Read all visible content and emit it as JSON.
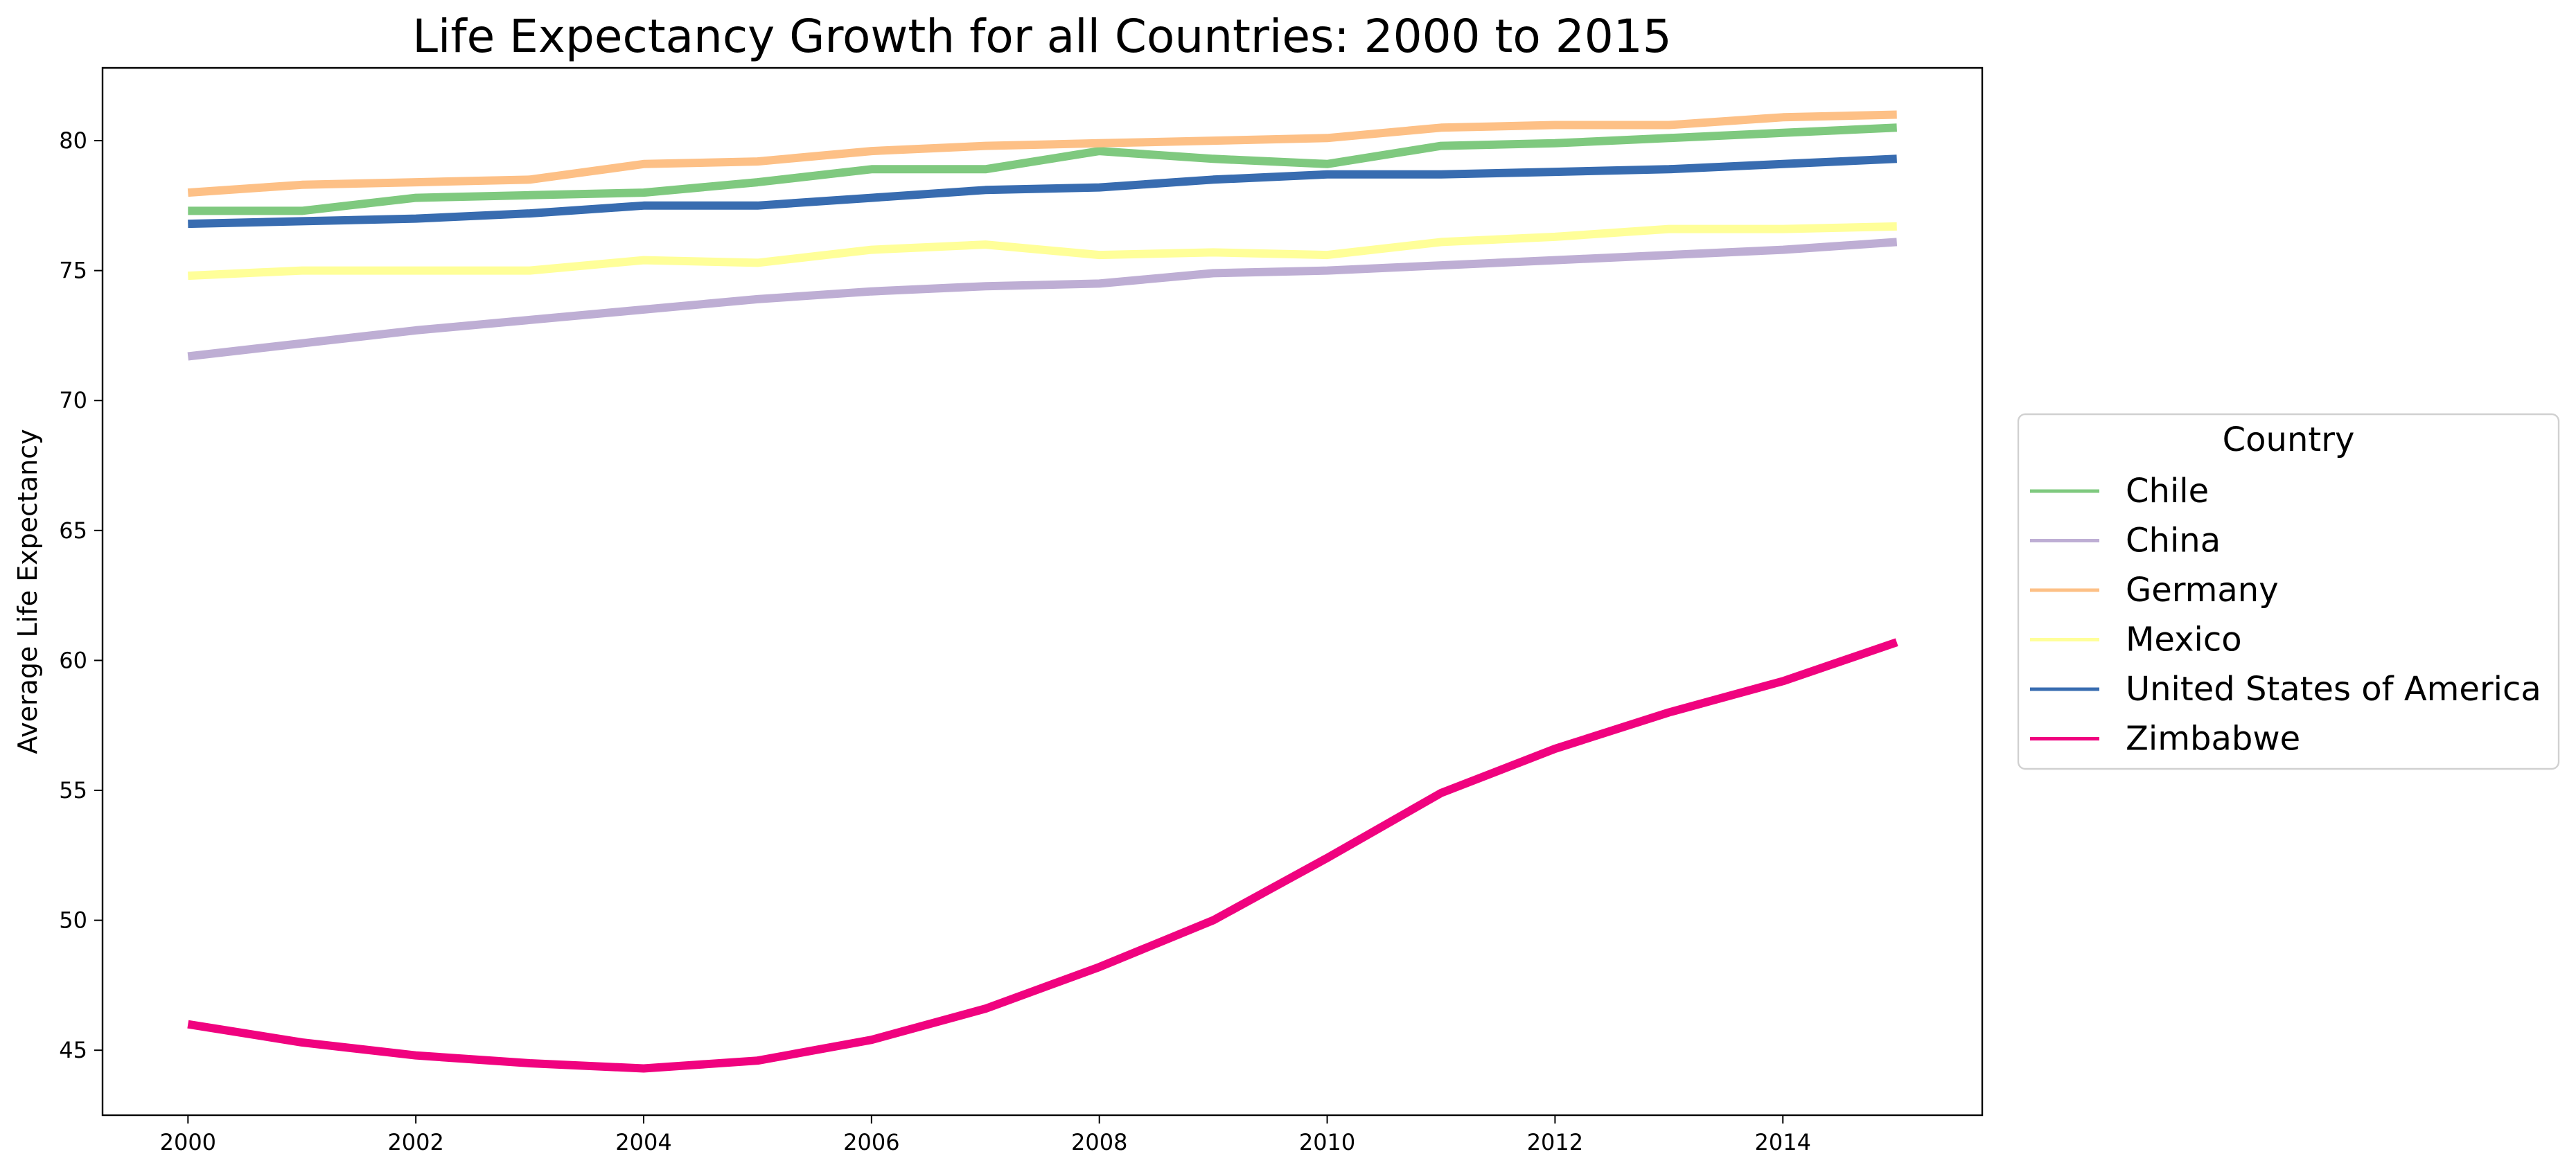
{
  "chart_data": {
    "type": "line",
    "title": "Life Expectancy Growth for all Countries: 2000 to 2015",
    "xlabel": "",
    "ylabel": "Average Life Expectancy",
    "xlim": [
      1999.25,
      2015.75
    ],
    "ylim": [
      42.5,
      82.8
    ],
    "xticks": [
      2000,
      2002,
      2004,
      2006,
      2008,
      2010,
      2012,
      2014
    ],
    "yticks": [
      45,
      50,
      55,
      60,
      65,
      70,
      75,
      80
    ],
    "grid": false,
    "legend": {
      "title": "Country",
      "placement": "outside-right"
    },
    "x": [
      2000,
      2001,
      2002,
      2003,
      2004,
      2005,
      2006,
      2007,
      2008,
      2009,
      2010,
      2011,
      2012,
      2013,
      2014,
      2015
    ],
    "series": [
      {
        "name": "Chile",
        "color": "#7fc97f",
        "values": [
          77.3,
          77.3,
          77.8,
          77.9,
          78.0,
          78.4,
          78.9,
          78.9,
          79.6,
          79.3,
          79.1,
          79.8,
          79.9,
          80.1,
          80.3,
          80.5
        ]
      },
      {
        "name": "China",
        "color": "#beaed4",
        "values": [
          71.7,
          72.2,
          72.7,
          73.1,
          73.5,
          73.9,
          74.2,
          74.4,
          74.5,
          74.9,
          75.0,
          75.2,
          75.4,
          75.6,
          75.8,
          76.1
        ]
      },
      {
        "name": "Germany",
        "color": "#fdc086",
        "values": [
          78.0,
          78.3,
          78.4,
          78.5,
          79.1,
          79.2,
          79.6,
          79.8,
          79.9,
          80.0,
          80.1,
          80.5,
          80.6,
          80.6,
          80.9,
          81.0
        ]
      },
      {
        "name": "Mexico",
        "color": "#ffff99",
        "values": [
          74.8,
          75.0,
          75.0,
          75.0,
          75.4,
          75.3,
          75.8,
          76.0,
          75.6,
          75.7,
          75.6,
          76.1,
          76.3,
          76.6,
          76.6,
          76.7
        ]
      },
      {
        "name": "United States of America",
        "color": "#386cb0",
        "values": [
          76.8,
          76.9,
          77.0,
          77.2,
          77.5,
          77.5,
          77.8,
          78.1,
          78.2,
          78.5,
          78.7,
          78.7,
          78.8,
          78.9,
          79.1,
          79.3
        ]
      },
      {
        "name": "Zimbabwe",
        "color": "#f0027f",
        "values": [
          46.0,
          45.3,
          44.8,
          44.5,
          44.3,
          44.6,
          45.4,
          46.6,
          48.2,
          50.0,
          52.4,
          54.9,
          56.6,
          58.0,
          59.2,
          60.7
        ]
      }
    ]
  }
}
